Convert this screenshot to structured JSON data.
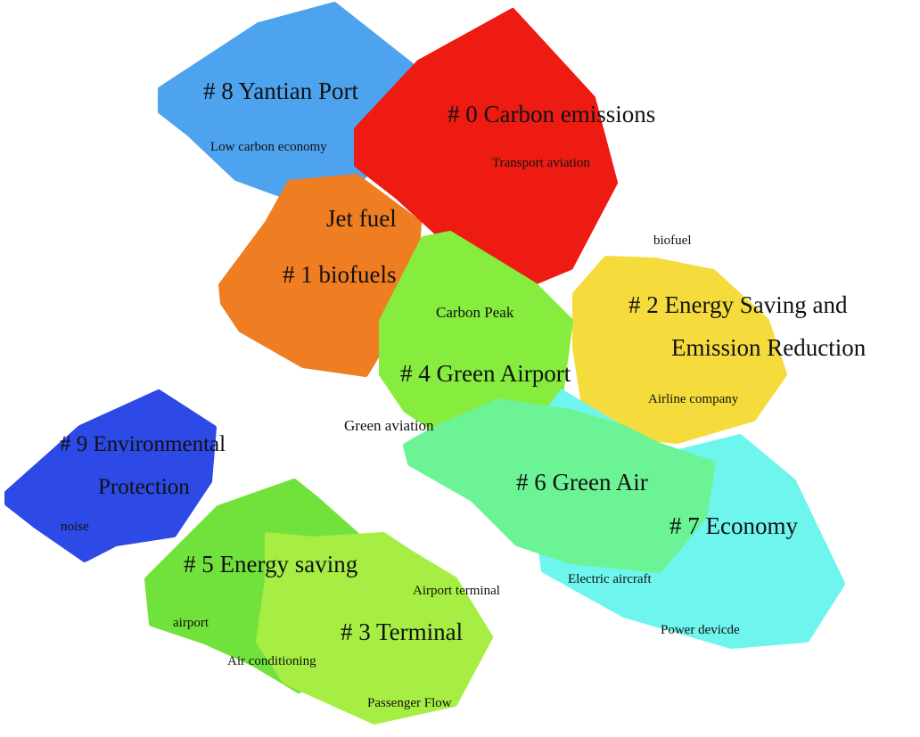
{
  "clusters": [
    {
      "id": "c8",
      "label": "# 8 Yantian Port",
      "color": "#4ea3ee"
    },
    {
      "id": "c0",
      "label": "# 0 Carbon emissions",
      "color": "#ee1b12"
    },
    {
      "id": "c1",
      "label": "# 1 biofuels",
      "color": "#ef7d22"
    },
    {
      "id": "c4",
      "label": "# 4 Green Airport",
      "color": "#86ec3e"
    },
    {
      "id": "c2",
      "label_line1": "# 2 Energy Saving and",
      "label_line2": "Emission Reduction",
      "color": "#f5dc3c"
    },
    {
      "id": "c9",
      "label_line1": "# 9 Environmental",
      "label_line2": "Protection",
      "color": "#2d49e6"
    },
    {
      "id": "c6",
      "label": "# 6 Green Air",
      "color": "#6cf395"
    },
    {
      "id": "c7",
      "label": "# 7 Economy",
      "color": "#6df5ee"
    },
    {
      "id": "c5",
      "label": "# 5 Energy saving",
      "color": "#71e23c"
    },
    {
      "id": "c3",
      "label": "# 3 Terminal",
      "color": "#a6ee43"
    }
  ],
  "keywords": {
    "low_carbon_economy": "Low carbon economy",
    "transport_aviation": "Transport aviation",
    "jet_fuel": "Jet fuel",
    "biofuel": "biofuel",
    "carbon_peak": "Carbon Peak",
    "airline_company": "Airline company",
    "green_aviation": "Green aviation",
    "noise": "noise",
    "airport_terminal": "Airport terminal",
    "electric_aircraft": "Electric aircraft",
    "airport": "airport",
    "air_conditioning": "Air conditioning",
    "power_device": "Power devicde",
    "passenger_flow": "Passenger Flow"
  }
}
